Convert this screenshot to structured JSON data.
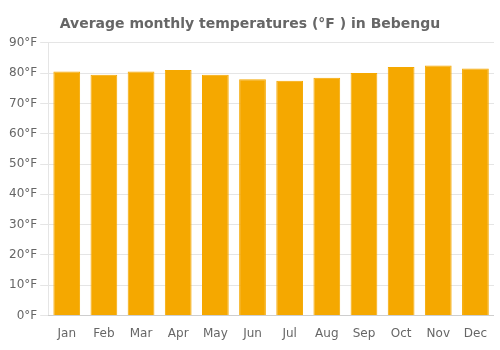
{
  "chart_data": {
    "type": "bar",
    "title": "Average monthly temperatures (°F ) in Bebengu",
    "categories": [
      "Jan",
      "Feb",
      "Mar",
      "Apr",
      "May",
      "Jun",
      "Jul",
      "Aug",
      "Sep",
      "Oct",
      "Nov",
      "Dec"
    ],
    "values": [
      80.5,
      79.5,
      80.5,
      81.0,
      79.5,
      78.0,
      77.5,
      78.5,
      80.0,
      82.0,
      82.5,
      81.5
    ],
    "color": "#F5A800",
    "ylim": [
      0,
      90
    ],
    "yticks": [
      {
        "value": 0,
        "label": "0°F"
      },
      {
        "value": 10,
        "label": "10°F"
      },
      {
        "value": 20,
        "label": "20°F"
      },
      {
        "value": 30,
        "label": "30°F"
      },
      {
        "value": 40,
        "label": "40°F"
      },
      {
        "value": 50,
        "label": "50°F"
      },
      {
        "value": 60,
        "label": "60°F"
      },
      {
        "value": 70,
        "label": "70°F"
      },
      {
        "value": 80,
        "label": "80°F"
      },
      {
        "value": 90,
        "label": "90°F"
      }
    ],
    "grid": true
  }
}
